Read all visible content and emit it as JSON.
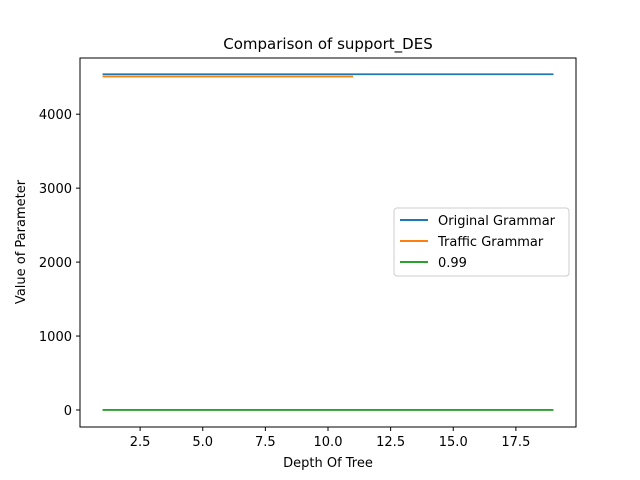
{
  "chart_data": {
    "type": "line",
    "title": "Comparison of support_DES",
    "xlabel": "Depth Of Tree",
    "ylabel": "Value of Parameter",
    "xlim": [
      0.1,
      19.9
    ],
    "ylim": [
      -230,
      4760
    ],
    "xticks": [
      2.5,
      5.0,
      7.5,
      10.0,
      12.5,
      15.0,
      17.5
    ],
    "xtick_labels": [
      "2.5",
      "5.0",
      "7.5",
      "10.0",
      "12.5",
      "15.0",
      "17.5"
    ],
    "yticks": [
      0,
      1000,
      2000,
      3000,
      4000
    ],
    "ytick_labels": [
      "0",
      "1000",
      "2000",
      "3000",
      "4000"
    ],
    "grid": false,
    "legend_position": "center-right",
    "series": [
      {
        "name": "Original Grammar",
        "color": "#1f77b4",
        "x": [
          1,
          2,
          3,
          4,
          5,
          6,
          7,
          8,
          9,
          10,
          11,
          12,
          13,
          14,
          15,
          16,
          17,
          18,
          19
        ],
        "y": [
          4540,
          4540,
          4540,
          4540,
          4540,
          4540,
          4540,
          4540,
          4540,
          4540,
          4540,
          4540,
          4540,
          4540,
          4540,
          4540,
          4540,
          4540,
          4540
        ]
      },
      {
        "name": "Traffic Grammar",
        "color": "#ff7f0e",
        "x": [
          1,
          2,
          3,
          4,
          5,
          6,
          7,
          8,
          9,
          10,
          11
        ],
        "y": [
          4510,
          4510,
          4510,
          4510,
          4510,
          4510,
          4510,
          4510,
          4510,
          4510,
          4510
        ]
      },
      {
        "name": "0.99",
        "color": "#2ca02c",
        "x": [
          1,
          2,
          3,
          4,
          5,
          6,
          7,
          8,
          9,
          10,
          11,
          12,
          13,
          14,
          15,
          16,
          17,
          18,
          19
        ],
        "y": [
          0.99,
          0.99,
          0.99,
          0.99,
          0.99,
          0.99,
          0.99,
          0.99,
          0.99,
          0.99,
          0.99,
          0.99,
          0.99,
          0.99,
          0.99,
          0.99,
          0.99,
          0.99,
          0.99
        ]
      }
    ]
  }
}
